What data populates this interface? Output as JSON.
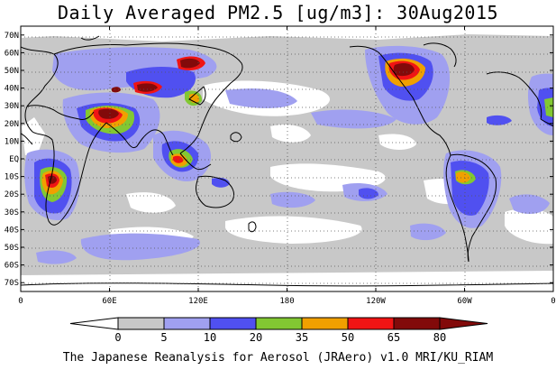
{
  "title": "Daily Averaged PM2.5 [ug/m3]: 30Aug2015",
  "credit": "The Japanese Reanalysis for Aerosol (JRAero) v1.0 MRI/KU_RIAM",
  "map": {
    "projection": "cylindrical equidistant",
    "lon_range": [
      0,
      360
    ],
    "lat_range": [
      -75,
      75
    ],
    "lat_labels": [
      "70N",
      "60N",
      "50N",
      "40N",
      "30N",
      "20N",
      "10N",
      "EQ",
      "10S",
      "20S",
      "30S",
      "40S",
      "50S",
      "60S",
      "70S"
    ],
    "lat_values": [
      70,
      60,
      50,
      40,
      30,
      20,
      10,
      0,
      -10,
      -20,
      -30,
      -40,
      -50,
      -60,
      -70
    ],
    "lon_labels": [
      "0",
      "60E",
      "120E",
      "180",
      "120W",
      "60W",
      "0"
    ],
    "lon_values": [
      0,
      60,
      120,
      180,
      240,
      300,
      360
    ],
    "gridlines": "dotted",
    "color_scale": {
      "levels": [
        "0",
        "5",
        "10",
        "20",
        "35",
        "50",
        "65",
        "80"
      ],
      "colors": [
        "#ffffff",
        "#c8c8c8",
        "#a0a0f0",
        "#5050f0",
        "#82c832",
        "#f0a000",
        "#f01414",
        "#820a0a"
      ]
    }
  }
}
